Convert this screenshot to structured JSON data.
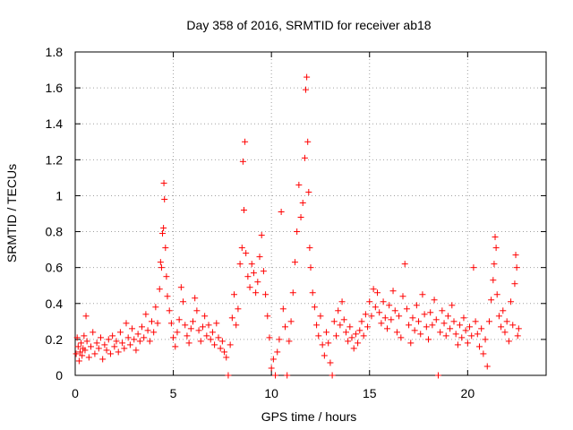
{
  "chart_data": {
    "type": "scatter",
    "title": "Day 358 of 2016, SRMTID for receiver ab18",
    "xlabel": "GPS time / hours",
    "ylabel": "SRMTID / TECUs",
    "xlim": [
      0,
      24
    ],
    "ylim": [
      0,
      1.8
    ],
    "xticks": [
      0,
      5,
      10,
      15,
      20
    ],
    "yticks": [
      0,
      0.2,
      0.4,
      0.6,
      0.8,
      1,
      1.2,
      1.4,
      1.6,
      1.8
    ],
    "xtick_labels": [
      "0",
      "5",
      "10",
      "15",
      "20"
    ],
    "ytick_labels": [
      "0",
      "0.2",
      "0.4",
      "0.6",
      "0.8",
      "1",
      "1.2",
      "1.4",
      "1.6",
      "1.8"
    ],
    "grid": true,
    "marker": "+",
    "color": "#ff0000",
    "series": [
      {
        "name": "SRMTID",
        "points": [
          [
            0.05,
            0.12
          ],
          [
            0.1,
            0.21
          ],
          [
            0.15,
            0.16
          ],
          [
            0.2,
            0.08
          ],
          [
            0.25,
            0.13
          ],
          [
            0.3,
            0.18
          ],
          [
            0.35,
            0.11
          ],
          [
            0.4,
            0.15
          ],
          [
            0.45,
            0.22
          ],
          [
            0.5,
            0.14
          ],
          [
            0.55,
            0.33
          ],
          [
            0.6,
            0.19
          ],
          [
            0.7,
            0.1
          ],
          [
            0.8,
            0.16
          ],
          [
            0.9,
            0.24
          ],
          [
            1.0,
            0.12
          ],
          [
            1.1,
            0.18
          ],
          [
            1.2,
            0.15
          ],
          [
            1.3,
            0.21
          ],
          [
            1.4,
            0.09
          ],
          [
            1.5,
            0.17
          ],
          [
            1.6,
            0.14
          ],
          [
            1.7,
            0.2
          ],
          [
            1.8,
            0.12
          ],
          [
            1.9,
            0.22
          ],
          [
            2.0,
            0.16
          ],
          [
            2.1,
            0.19
          ],
          [
            2.2,
            0.13
          ],
          [
            2.3,
            0.24
          ],
          [
            2.4,
            0.18
          ],
          [
            2.5,
            0.15
          ],
          [
            2.6,
            0.29
          ],
          [
            2.7,
            0.21
          ],
          [
            2.8,
            0.17
          ],
          [
            2.9,
            0.26
          ],
          [
            3.0,
            0.2
          ],
          [
            3.1,
            0.14
          ],
          [
            3.2,
            0.23
          ],
          [
            3.3,
            0.19
          ],
          [
            3.4,
            0.27
          ],
          [
            3.5,
            0.21
          ],
          [
            3.6,
            0.34
          ],
          [
            3.7,
            0.25
          ],
          [
            3.8,
            0.19
          ],
          [
            3.9,
            0.3
          ],
          [
            4.0,
            0.24
          ],
          [
            4.1,
            0.38
          ],
          [
            4.2,
            0.29
          ],
          [
            4.3,
            0.48
          ],
          [
            4.35,
            0.63
          ],
          [
            4.4,
            0.6
          ],
          [
            4.45,
            0.79
          ],
          [
            4.5,
            0.82
          ],
          [
            4.52,
            1.07
          ],
          [
            4.55,
            0.98
          ],
          [
            4.6,
            0.71
          ],
          [
            4.65,
            0.55
          ],
          [
            4.7,
            0.44
          ],
          [
            4.8,
            0.36
          ],
          [
            4.9,
            0.29
          ],
          [
            5.0,
            0.21
          ],
          [
            5.1,
            0.16
          ],
          [
            5.2,
            0.24
          ],
          [
            5.3,
            0.31
          ],
          [
            5.4,
            0.49
          ],
          [
            5.5,
            0.41
          ],
          [
            5.6,
            0.28
          ],
          [
            5.7,
            0.22
          ],
          [
            5.8,
            0.18
          ],
          [
            5.9,
            0.26
          ],
          [
            6.0,
            0.3
          ],
          [
            6.1,
            0.43
          ],
          [
            6.2,
            0.36
          ],
          [
            6.3,
            0.25
          ],
          [
            6.4,
            0.19
          ],
          [
            6.5,
            0.27
          ],
          [
            6.6,
            0.33
          ],
          [
            6.7,
            0.22
          ],
          [
            6.8,
            0.28
          ],
          [
            6.9,
            0.2
          ],
          [
            7.0,
            0.24
          ],
          [
            7.1,
            0.17
          ],
          [
            7.2,
            0.29
          ],
          [
            7.3,
            0.21
          ],
          [
            7.4,
            0.15
          ],
          [
            7.5,
            0.19
          ],
          [
            7.6,
            0.13
          ],
          [
            7.7,
            0.1
          ],
          [
            7.8,
            0.0
          ],
          [
            7.9,
            0.17
          ],
          [
            8.0,
            0.32
          ],
          [
            8.1,
            0.45
          ],
          [
            8.2,
            0.28
          ],
          [
            8.3,
            0.37
          ],
          [
            8.4,
            0.62
          ],
          [
            8.5,
            0.71
          ],
          [
            8.55,
            1.19
          ],
          [
            8.6,
            0.92
          ],
          [
            8.65,
            1.3
          ],
          [
            8.7,
            0.68
          ],
          [
            8.8,
            0.55
          ],
          [
            8.9,
            0.49
          ],
          [
            9.0,
            0.62
          ],
          [
            9.1,
            0.57
          ],
          [
            9.2,
            0.46
          ],
          [
            9.3,
            0.52
          ],
          [
            9.4,
            0.66
          ],
          [
            9.5,
            0.78
          ],
          [
            9.6,
            0.58
          ],
          [
            9.7,
            0.45
          ],
          [
            9.8,
            0.33
          ],
          [
            9.9,
            0.21
          ],
          [
            10.0,
            0.04
          ],
          [
            10.1,
            0.09
          ],
          [
            10.2,
            0.0
          ],
          [
            10.3,
            0.13
          ],
          [
            10.4,
            0.2
          ],
          [
            10.5,
            0.91
          ],
          [
            10.6,
            0.37
          ],
          [
            10.7,
            0.27
          ],
          [
            10.8,
            0.0
          ],
          [
            10.9,
            0.19
          ],
          [
            11.0,
            0.3
          ],
          [
            11.1,
            0.46
          ],
          [
            11.2,
            0.63
          ],
          [
            11.3,
            0.8
          ],
          [
            11.4,
            1.06
          ],
          [
            11.5,
            0.88
          ],
          [
            11.6,
            0.96
          ],
          [
            11.7,
            1.21
          ],
          [
            11.75,
            1.59
          ],
          [
            11.8,
            1.66
          ],
          [
            11.85,
            1.3
          ],
          [
            11.9,
            1.02
          ],
          [
            11.95,
            0.71
          ],
          [
            12.0,
            0.6
          ],
          [
            12.1,
            0.46
          ],
          [
            12.2,
            0.38
          ],
          [
            12.3,
            0.28
          ],
          [
            12.4,
            0.22
          ],
          [
            12.5,
            0.33
          ],
          [
            12.6,
            0.17
          ],
          [
            12.7,
            0.11
          ],
          [
            12.8,
            0.24
          ],
          [
            12.9,
            0.18
          ],
          [
            13.0,
            0.07
          ],
          [
            13.1,
            0.0
          ],
          [
            13.2,
            0.3
          ],
          [
            13.3,
            0.22
          ],
          [
            13.4,
            0.36
          ],
          [
            13.5,
            0.28
          ],
          [
            13.6,
            0.41
          ],
          [
            13.7,
            0.31
          ],
          [
            13.8,
            0.24
          ],
          [
            13.9,
            0.19
          ],
          [
            14.0,
            0.27
          ],
          [
            14.1,
            0.21
          ],
          [
            14.2,
            0.15
          ],
          [
            14.3,
            0.23
          ],
          [
            14.4,
            0.18
          ],
          [
            14.5,
            0.25
          ],
          [
            14.6,
            0.3
          ],
          [
            14.7,
            0.22
          ],
          [
            14.8,
            0.34
          ],
          [
            14.9,
            0.27
          ],
          [
            15.0,
            0.41
          ],
          [
            15.1,
            0.33
          ],
          [
            15.2,
            0.48
          ],
          [
            15.3,
            0.38
          ],
          [
            15.4,
            0.46
          ],
          [
            15.5,
            0.35
          ],
          [
            15.6,
            0.29
          ],
          [
            15.7,
            0.41
          ],
          [
            15.8,
            0.32
          ],
          [
            15.9,
            0.26
          ],
          [
            16.0,
            0.39
          ],
          [
            16.1,
            0.31
          ],
          [
            16.2,
            0.47
          ],
          [
            16.3,
            0.36
          ],
          [
            16.4,
            0.24
          ],
          [
            16.5,
            0.33
          ],
          [
            16.6,
            0.21
          ],
          [
            16.7,
            0.44
          ],
          [
            16.8,
            0.62
          ],
          [
            16.9,
            0.37
          ],
          [
            17.0,
            0.28
          ],
          [
            17.1,
            0.18
          ],
          [
            17.2,
            0.32
          ],
          [
            17.3,
            0.25
          ],
          [
            17.4,
            0.39
          ],
          [
            17.5,
            0.3
          ],
          [
            17.6,
            0.23
          ],
          [
            17.7,
            0.45
          ],
          [
            17.8,
            0.34
          ],
          [
            17.9,
            0.27
          ],
          [
            18.0,
            0.2
          ],
          [
            18.1,
            0.35
          ],
          [
            18.2,
            0.28
          ],
          [
            18.3,
            0.42
          ],
          [
            18.4,
            0.31
          ],
          [
            18.5,
            0.0
          ],
          [
            18.6,
            0.24
          ],
          [
            18.7,
            0.36
          ],
          [
            18.8,
            0.29
          ],
          [
            18.9,
            0.22
          ],
          [
            19.0,
            0.33
          ],
          [
            19.1,
            0.26
          ],
          [
            19.2,
            0.39
          ],
          [
            19.3,
            0.3
          ],
          [
            19.4,
            0.23
          ],
          [
            19.5,
            0.17
          ],
          [
            19.6,
            0.28
          ],
          [
            19.7,
            0.21
          ],
          [
            19.8,
            0.32
          ],
          [
            19.9,
            0.25
          ],
          [
            20.0,
            0.18
          ],
          [
            20.1,
            0.27
          ],
          [
            20.2,
            0.22
          ],
          [
            20.3,
            0.6
          ],
          [
            20.4,
            0.3
          ],
          [
            20.5,
            0.23
          ],
          [
            20.6,
            0.16
          ],
          [
            20.7,
            0.26
          ],
          [
            20.8,
            0.12
          ],
          [
            20.9,
            0.2
          ],
          [
            21.0,
            0.05
          ],
          [
            21.1,
            0.3
          ],
          [
            21.2,
            0.42
          ],
          [
            21.3,
            0.53
          ],
          [
            21.35,
            0.62
          ],
          [
            21.4,
            0.77
          ],
          [
            21.45,
            0.71
          ],
          [
            21.5,
            0.45
          ],
          [
            21.6,
            0.33
          ],
          [
            21.7,
            0.27
          ],
          [
            21.8,
            0.36
          ],
          [
            21.9,
            0.24
          ],
          [
            22.0,
            0.3
          ],
          [
            22.1,
            0.19
          ],
          [
            22.2,
            0.41
          ],
          [
            22.3,
            0.28
          ],
          [
            22.4,
            0.51
          ],
          [
            22.45,
            0.67
          ],
          [
            22.5,
            0.6
          ],
          [
            22.55,
            0.22
          ],
          [
            22.6,
            0.26
          ]
        ]
      }
    ]
  }
}
